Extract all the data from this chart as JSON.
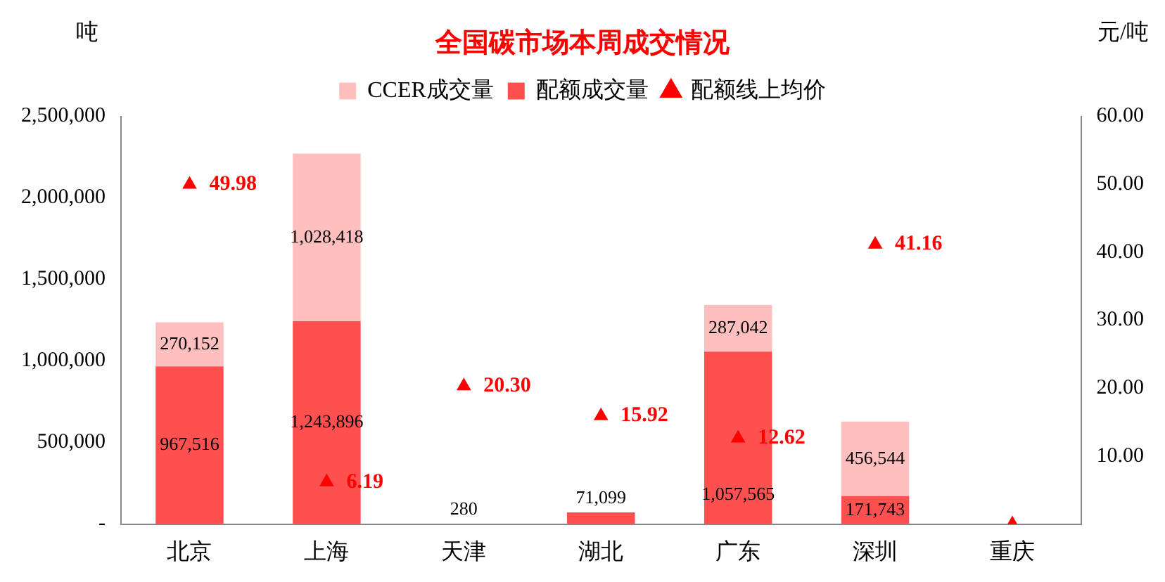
{
  "chart_data": {
    "type": "bar",
    "title": "全国碳市场本周成交情况",
    "ylabel": "吨",
    "y2label": "元/吨",
    "stacked": true,
    "legend": "top",
    "grid": false,
    "categories": [
      "北京",
      "上海",
      "天津",
      "湖北",
      "广东",
      "深圳",
      "重庆"
    ],
    "series": [
      {
        "name": "配额成交量",
        "color": "#ff5050",
        "values": [
          967516,
          1243896,
          280,
          71099,
          1057565,
          171743,
          null
        ],
        "value_labels": [
          "967,516",
          "1,243,896",
          "280",
          "71,099",
          "1,057,565",
          "171,743",
          null
        ]
      },
      {
        "name": "CCER成交量",
        "color": "#ffbfbf",
        "values": [
          270152,
          1028418,
          null,
          null,
          287042,
          456544,
          null
        ],
        "value_labels": [
          "270,152",
          "1,028,418",
          null,
          null,
          "287,042",
          "456,544",
          null
        ]
      },
      {
        "name": "配额线上均价",
        "type": "scatter",
        "axis": "y2",
        "marker": "triangle",
        "color": "#ff0000",
        "values": [
          49.98,
          6.19,
          20.3,
          15.92,
          12.62,
          41.16,
          0
        ],
        "value_labels": [
          "49.98",
          "6.19",
          "20.30",
          "15.92",
          "12.62",
          "41.16",
          null
        ]
      }
    ],
    "ylim": [
      0,
      2500000
    ],
    "yticks": [
      {
        "value": 0,
        "label": "-"
      },
      {
        "value": 500000,
        "label": "500,000"
      },
      {
        "value": 1000000,
        "label": "1,000,000"
      },
      {
        "value": 1500000,
        "label": "1,500,000"
      },
      {
        "value": 2000000,
        "label": "2,000,000"
      },
      {
        "value": 2500000,
        "label": "2,500,000"
      }
    ],
    "y2lim": [
      0,
      60
    ],
    "y2ticks": [
      {
        "value": 0,
        "label": null
      },
      {
        "value": 10,
        "label": "10.00"
      },
      {
        "value": 20,
        "label": "20.00"
      },
      {
        "value": 30,
        "label": "30.00"
      },
      {
        "value": 40,
        "label": "40.00"
      },
      {
        "value": 50,
        "label": "50.00"
      },
      {
        "value": 60,
        "label": "60.00"
      }
    ]
  }
}
